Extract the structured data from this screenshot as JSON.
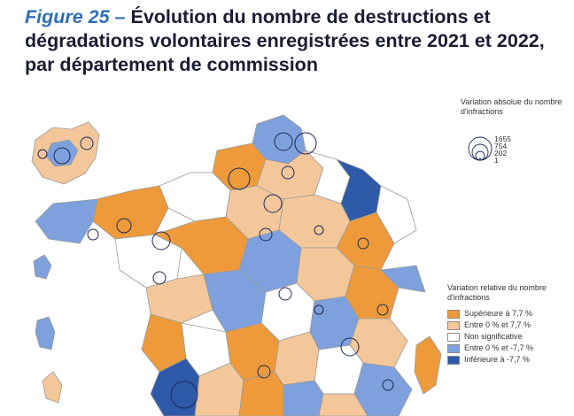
{
  "title": {
    "figure": "Figure 25 –",
    "text": "Évolution du nombre de destructions et dégradations volontaires enregistrées entre 2021 et 2022, par département de commission"
  },
  "size_legend": {
    "title": "Variation absolue du nombre d'infractions",
    "values": [
      "1655",
      "754",
      "202",
      "1"
    ]
  },
  "color_legend": {
    "title": "Variation relative du nombre d'infractions",
    "items": [
      {
        "label": "Supérieure à 7,7 %",
        "color": "#ee9a3a"
      },
      {
        "label": "Entre 0 % et 7,7 %",
        "color": "#f4c79a"
      },
      {
        "label": "Non significative",
        "color": "#ffffff"
      },
      {
        "label": "Entre 0 % et -7,7 %",
        "color": "#7ea0dc"
      },
      {
        "label": "Inférieure à -7,7 %",
        "color": "#2f5aa8"
      }
    ]
  }
}
